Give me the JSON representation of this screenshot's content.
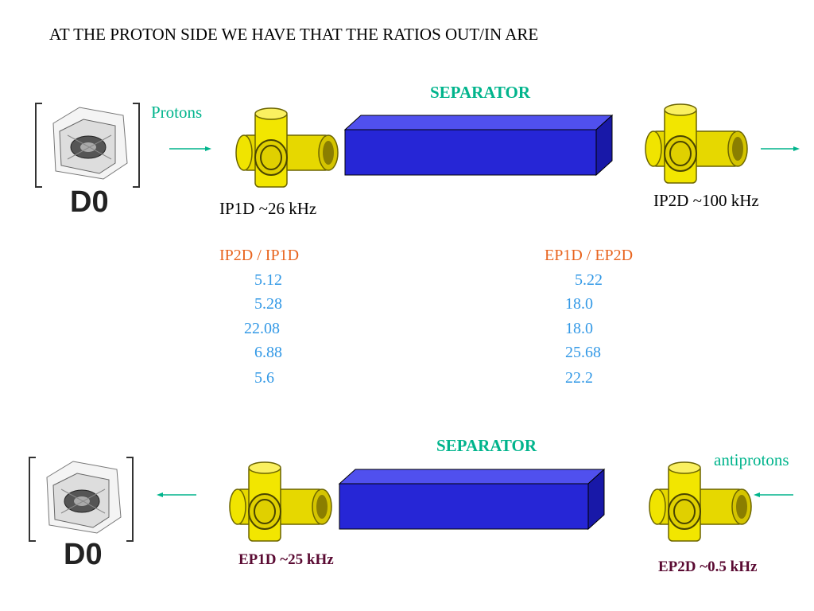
{
  "title": "AT THE PROTON SIDE WE HAVE THAT THE RATIOS OUT/IN ARE",
  "top": {
    "separator": "SEPARATOR",
    "beam": "Protons",
    "detector": "D0",
    "left_rate": "IP1D ~26 kHz",
    "right_rate": "IP2D ~100 kHz"
  },
  "ratios": [
    {
      "header": "IP2D / IP1D",
      "values": [
        "5.12",
        "5.28",
        "22.08",
        "6.88",
        "5.6"
      ]
    },
    {
      "header": "EP1D / EP2D",
      "values": [
        "5.22",
        "18.0",
        "18.0",
        "25.68",
        "22.2"
      ]
    }
  ],
  "bottom": {
    "separator": "SEPARATOR",
    "beam": "antiprotons",
    "detector": "D0",
    "left_rate": "EP1D ~25 kHz",
    "right_rate": "EP2D ~0.5 kHz"
  }
}
